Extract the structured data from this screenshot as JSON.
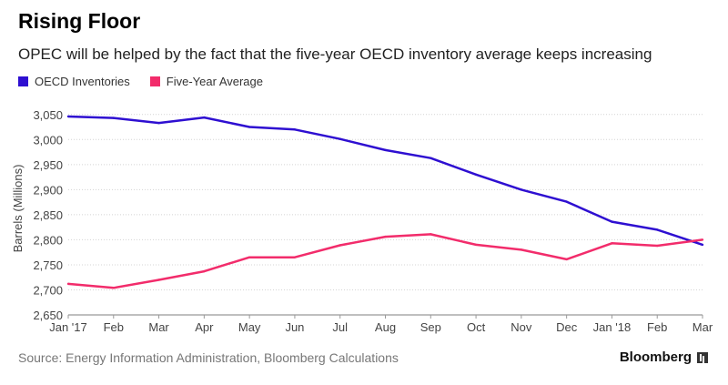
{
  "header": {
    "title": "Rising Floor",
    "subtitle": "OPEC will be helped by the fact that the five-year OECD inventory average keeps increasing"
  },
  "legend": [
    {
      "label": "OECD Inventories",
      "color": "#2e0fd1"
    },
    {
      "label": "Five-Year Average",
      "color": "#f22c6b"
    }
  ],
  "footer": {
    "source": "Source: Energy Information Administration, Bloomberg Calculations",
    "brand": "Bloomberg",
    "brand_icon": "bloomberg-mark-icon"
  },
  "chart_data": {
    "type": "line",
    "title": "Rising Floor",
    "subtitle": "OPEC will be helped by the fact that the five-year OECD inventory average keeps increasing",
    "xlabel": "",
    "ylabel": "Barrels (Millions)",
    "categories": [
      "Jan '17",
      "Feb",
      "Mar",
      "Apr",
      "May",
      "Jun",
      "Jul",
      "Aug",
      "Sep",
      "Oct",
      "Nov",
      "Dec",
      "Jan '18",
      "Feb",
      "Mar"
    ],
    "series": [
      {
        "name": "OECD Inventories",
        "color": "#2e0fd1",
        "values": [
          3046,
          3043,
          3033,
          3044,
          3025,
          3020,
          3001,
          2979,
          2963,
          2930,
          2900,
          2876,
          2836,
          2820,
          2790
        ]
      },
      {
        "name": "Five-Year Average",
        "color": "#f22c6b",
        "values": [
          2712,
          2704,
          2720,
          2737,
          2765,
          2765,
          2789,
          2806,
          2811,
          2790,
          2780,
          2761,
          2793,
          2788,
          2800
        ]
      }
    ],
    "yticks": [
      "2,650",
      "2,700",
      "2,750",
      "2,800",
      "2,850",
      "2,900",
      "2,950",
      "3,000",
      "3,050"
    ],
    "ylim": [
      2650,
      3075
    ],
    "grid": true,
    "legend_position": "top-left"
  }
}
